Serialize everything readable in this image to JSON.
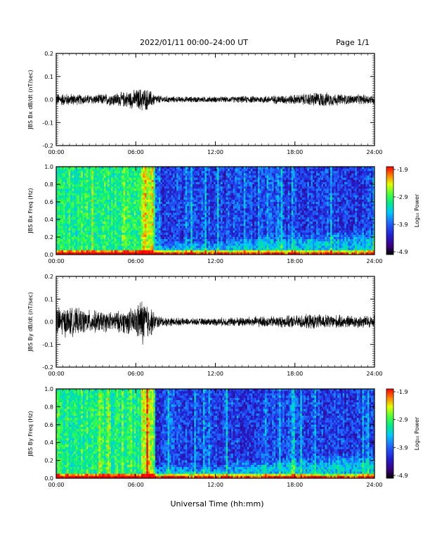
{
  "header": {
    "title": "2022/01/11  00:00–24:00 UT",
    "page": "Page 1/1"
  },
  "x_axis_label": "Universal Time (hh:mm)",
  "time_ticks": [
    "00:00",
    "06:00",
    "12:00",
    "18:00",
    "24:00"
  ],
  "colorbar_label": "Log₁₀ Power",
  "colorbar_ticks": [
    "-1.9",
    "-2.9",
    "-3.9",
    "-4.9"
  ],
  "colors": {
    "trace": "#000000",
    "colormap": [
      "#000000",
      "#3c0080",
      "#2020d0",
      "#2060ff",
      "#00c8ff",
      "#00e890",
      "#40ff40",
      "#e0ff00",
      "#ff8000",
      "#ff0000"
    ]
  },
  "chart_data": [
    {
      "type": "line",
      "title": "",
      "xlabel": "",
      "ylabel": "JBS Bx dB/dt (nT/sec)",
      "xlim": [
        0,
        24
      ],
      "ylim": [
        -0.2,
        0.2
      ],
      "yticks": [
        "0.2",
        "0.1",
        "0.0",
        "-0.1",
        "-0.2"
      ],
      "xticks": [
        "00:00",
        "06:00",
        "12:00",
        "18:00",
        "24:00"
      ],
      "grid": false,
      "series": [
        {
          "x": [
            0,
            1,
            2,
            3,
            4,
            5,
            6,
            6.5,
            7,
            7.5,
            8,
            9,
            10,
            11,
            12,
            13,
            14,
            15,
            16,
            17,
            18,
            19,
            19.5,
            20,
            21,
            22,
            23,
            24
          ],
          "y_envelope": [
            0.025,
            0.025,
            0.02,
            0.02,
            0.025,
            0.03,
            0.04,
            0.05,
            0.04,
            0.02,
            0.015,
            0.012,
            0.012,
            0.012,
            0.012,
            0.012,
            0.014,
            0.014,
            0.016,
            0.018,
            0.02,
            0.025,
            0.03,
            0.03,
            0.025,
            0.02,
            0.02,
            0.02
          ]
        }
      ]
    },
    {
      "type": "heatmap",
      "title": "",
      "xlabel": "",
      "ylabel": "JBS Bx Freq (Hz)",
      "xlim": [
        0,
        24
      ],
      "ylim": [
        0,
        1.0
      ],
      "yticks": [
        "1.0",
        "0.8",
        "0.6",
        "0.4",
        "0.2",
        "0.0"
      ],
      "xticks": [
        "00:00",
        "06:00",
        "12:00",
        "18:00",
        "24:00"
      ],
      "color_range": [
        -4.9,
        -1.9
      ],
      "colorbar": "Log₁₀ Power",
      "description_levels": {
        "quiet_night_hours": [
          7.5,
          24
        ],
        "active_hours": [
          0,
          7.5
        ]
      }
    },
    {
      "type": "line",
      "title": "",
      "xlabel": "",
      "ylabel": "JBS By dB/dt (nT/sec)",
      "xlim": [
        0,
        24
      ],
      "ylim": [
        -0.2,
        0.2
      ],
      "yticks": [
        "0.2",
        "0.1",
        "0.0",
        "-0.1",
        "-0.2"
      ],
      "xticks": [
        "00:00",
        "06:00",
        "12:00",
        "18:00",
        "24:00"
      ],
      "grid": false,
      "series": [
        {
          "x": [
            0,
            1,
            2,
            3,
            4,
            5,
            6,
            6.5,
            7,
            7.5,
            8,
            9,
            10,
            11,
            12,
            13,
            14,
            15,
            16,
            17,
            18,
            19,
            20,
            21,
            22,
            23,
            24
          ],
          "y_envelope": [
            0.06,
            0.06,
            0.05,
            0.045,
            0.04,
            0.045,
            0.06,
            0.1,
            0.07,
            0.03,
            0.02,
            0.016,
            0.014,
            0.014,
            0.016,
            0.018,
            0.02,
            0.022,
            0.022,
            0.024,
            0.026,
            0.03,
            0.03,
            0.028,
            0.026,
            0.026,
            0.026
          ]
        }
      ]
    },
    {
      "type": "heatmap",
      "title": "",
      "xlabel": "",
      "ylabel": "JBS By Freq (Hz)",
      "xlim": [
        0,
        24
      ],
      "ylim": [
        0,
        1.0
      ],
      "yticks": [
        "1.0",
        "0.8",
        "0.6",
        "0.4",
        "0.2",
        "0.0"
      ],
      "xticks": [
        "00:00",
        "06:00",
        "12:00",
        "18:00",
        "24:00"
      ],
      "color_range": [
        -4.9,
        -1.9
      ],
      "colorbar": "Log₁₀ Power",
      "description_levels": {
        "quiet_night_hours": [
          7.5,
          24
        ],
        "active_hours": [
          0,
          7.5
        ]
      }
    }
  ]
}
